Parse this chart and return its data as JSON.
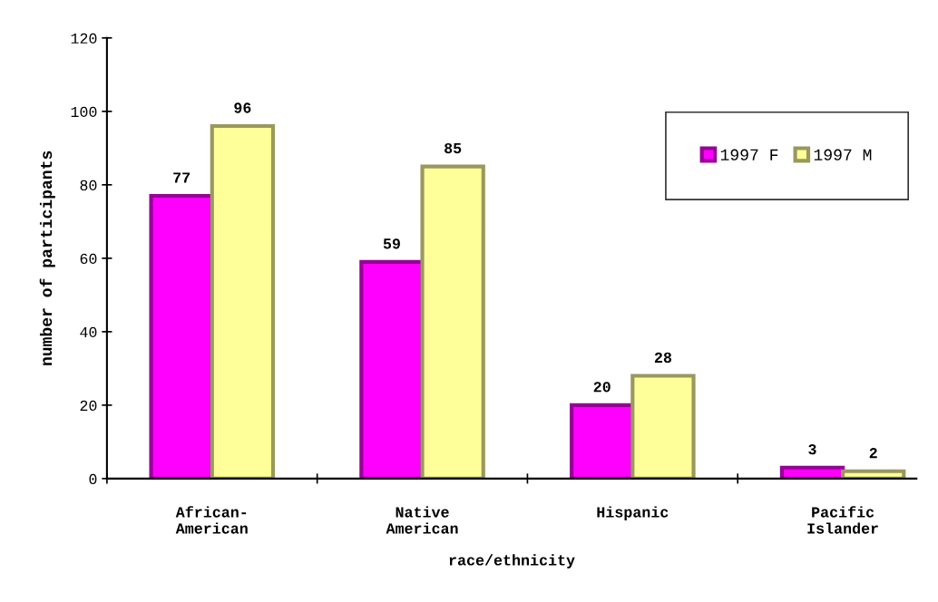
{
  "chart_data": {
    "type": "bar",
    "xlabel": "race/ethnicity",
    "ylabel": "number of participants",
    "categories": [
      "African-\nAmerican",
      "Native\nAmerican",
      "Hispanic",
      "Pacific\nIslander"
    ],
    "series": [
      {
        "name": "1997 F",
        "color": "#ff00ff",
        "values": [
          77,
          59,
          20,
          3
        ]
      },
      {
        "name": "1997 M",
        "color": "#ffff99",
        "values": [
          96,
          85,
          28,
          2
        ]
      }
    ],
    "ylim": [
      0,
      120
    ],
    "yticks": [
      0,
      20,
      40,
      60,
      80,
      100,
      120
    ],
    "data_labels": true,
    "legend": "top right",
    "grid": false
  }
}
